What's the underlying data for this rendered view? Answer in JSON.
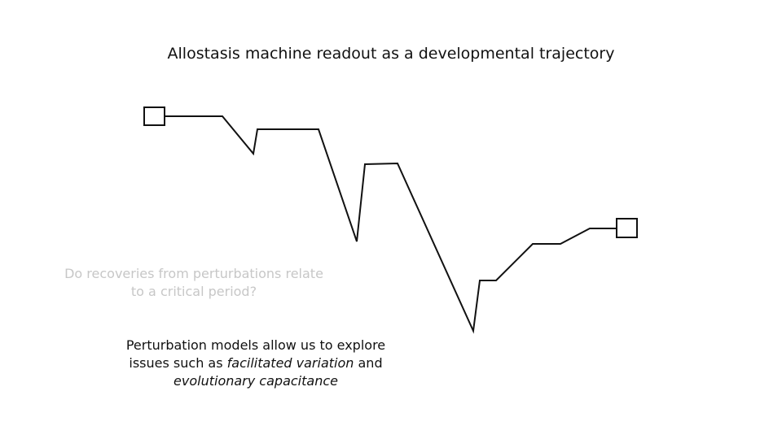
{
  "title": "Allostasis machine readout as a developmental trajectory",
  "question": {
    "line1": "Do recoveries from perturbations relate",
    "line2": "to a critical period?"
  },
  "note": {
    "line1": "Perturbation models allow us to explore",
    "line2_prefix": "issues such as ",
    "line2_italic": "facilitated variation",
    "line2_suffix": " and",
    "line3_italic": "evolutionary capacitance"
  },
  "colors": {
    "text": "#111111",
    "faded_text": "#c7c7c7",
    "stroke": "#111111"
  }
}
